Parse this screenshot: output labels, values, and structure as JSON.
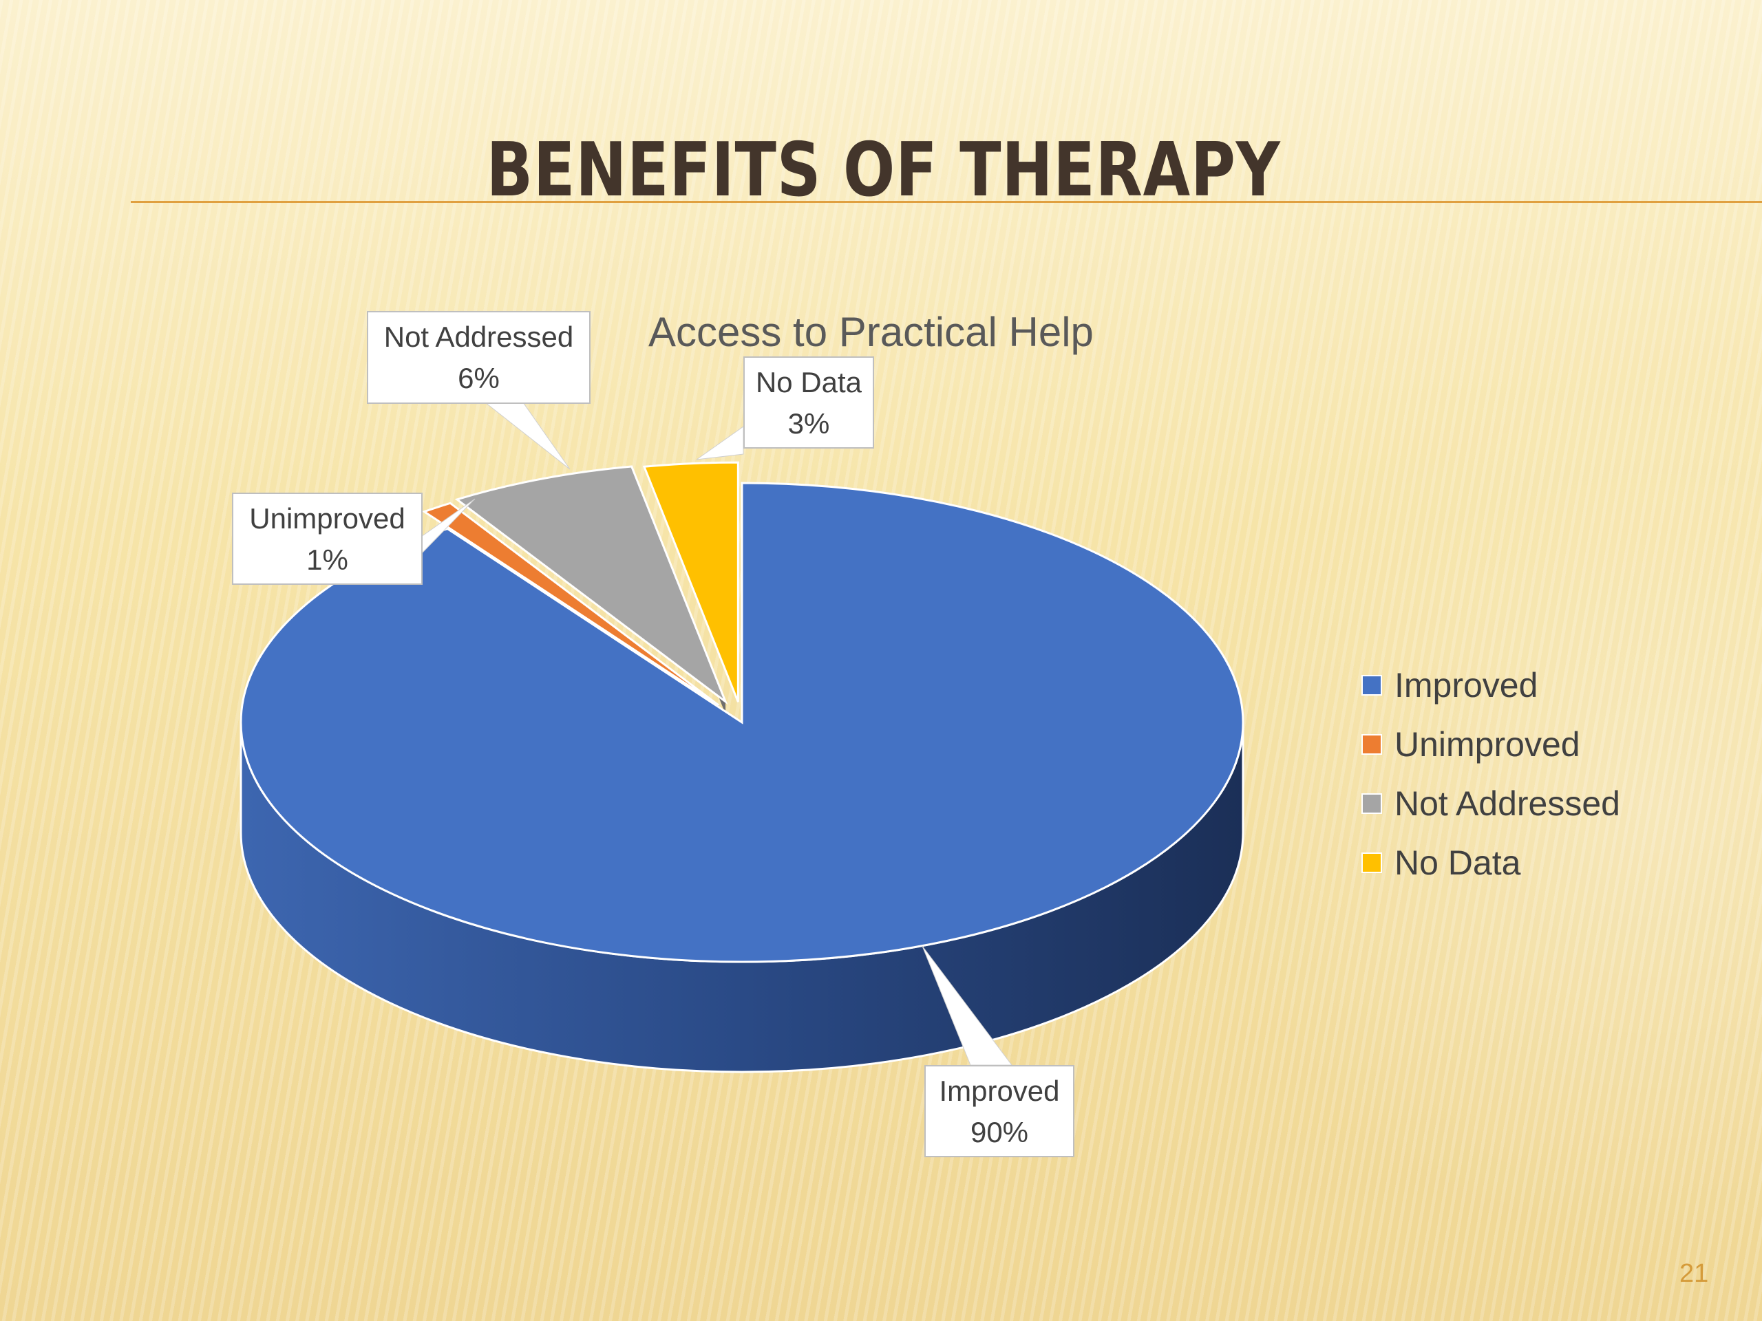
{
  "slide": {
    "title": "BENEFITS OF THERAPY",
    "page_number": "21"
  },
  "chart_data": {
    "type": "pie",
    "title": "Access to Practical Help",
    "categories": [
      "Improved",
      "Unimproved",
      "Not Addressed",
      "No Data"
    ],
    "values": [
      90,
      1,
      6,
      3
    ],
    "data_labels": [
      {
        "category": "Improved",
        "label": "90%"
      },
      {
        "category": "Unimproved",
        "label": "1%"
      },
      {
        "category": "Not Addressed",
        "label": "6%"
      },
      {
        "category": "No Data",
        "label": "3%"
      }
    ],
    "colors": [
      "#4472c4",
      "#ed7d31",
      "#a5a5a5",
      "#ffc000"
    ],
    "legend": "right",
    "style": "3d-exploded"
  }
}
